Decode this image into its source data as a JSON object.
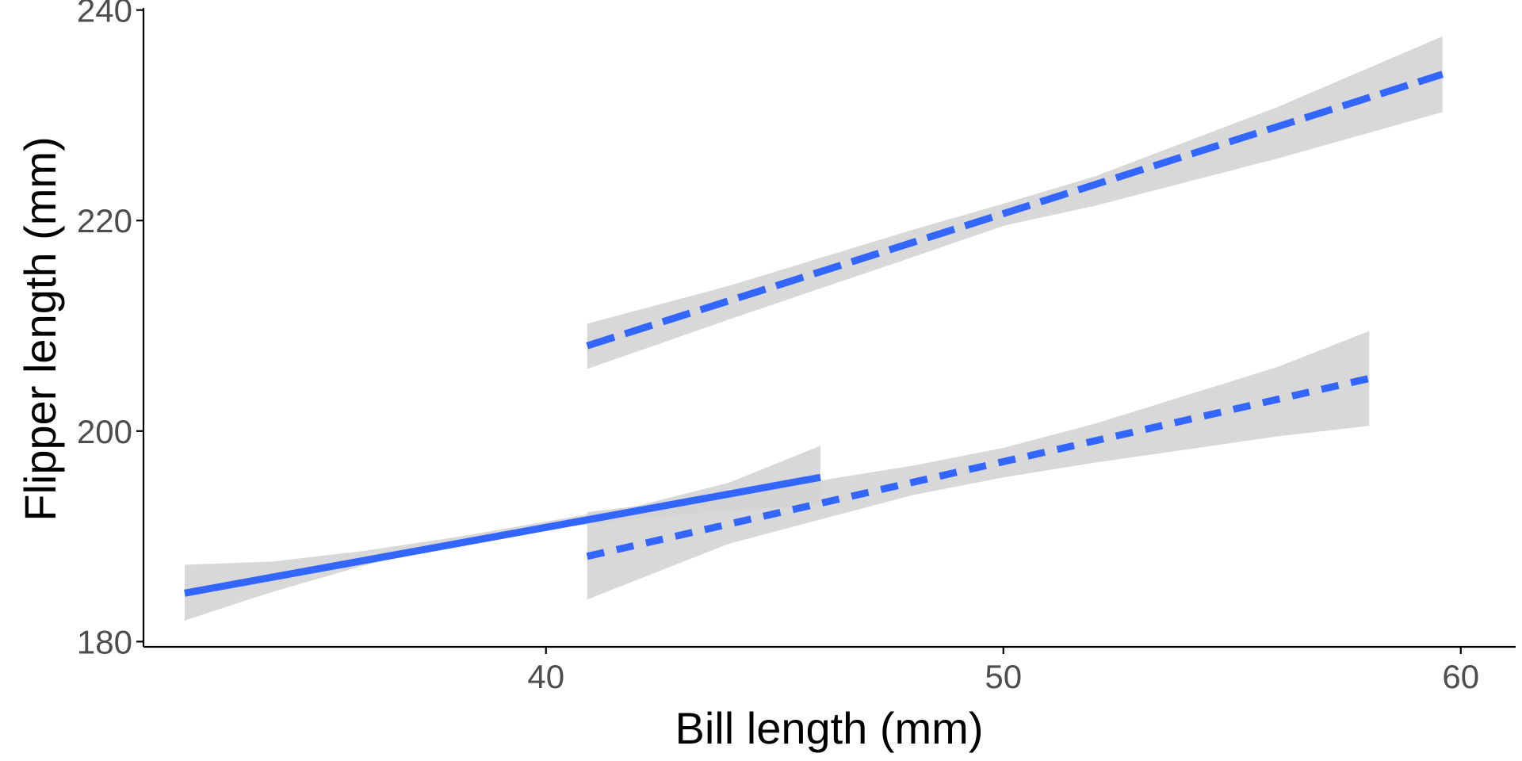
{
  "chart_data": {
    "type": "line",
    "title": "",
    "xlabel": "Bill length (mm)",
    "ylabel": "Flipper length (mm)",
    "xlim": [
      31.2,
      61.2
    ],
    "ylim": [
      179.5,
      240.2
    ],
    "x_ticks": [
      40,
      50,
      60
    ],
    "y_ticks": [
      180,
      200,
      220,
      240
    ],
    "grid": false,
    "legend": "none",
    "color": "#3366ff",
    "band_color": "#d3d3d3",
    "series": [
      {
        "linetype": "solid",
        "x": [
          32.1,
          46.0
        ],
        "y": [
          184.6,
          195.6
        ],
        "band_x": [
          32.1,
          34,
          36,
          38,
          40,
          42,
          44,
          46.0
        ],
        "band_lower": [
          182.0,
          184.7,
          187.2,
          189.4,
          190.7,
          191.7,
          192.5,
          192.9
        ],
        "band_upper": [
          187.3,
          187.6,
          188.6,
          189.9,
          191.4,
          192.9,
          195.1,
          198.6
        ]
      },
      {
        "linetype": "dashed",
        "x": [
          40.9,
          59.6
        ],
        "y": [
          208.1,
          233.9
        ],
        "band_x": [
          40.9,
          44,
          48,
          50,
          52,
          56,
          59.6
        ],
        "band_lower": [
          205.9,
          210.6,
          216.5,
          219.5,
          221.4,
          225.9,
          230.3
        ],
        "band_upper": [
          210.2,
          213.8,
          219.1,
          221.6,
          224.2,
          230.8,
          237.5
        ]
      },
      {
        "linetype": "dotted-dash",
        "x": [
          40.9,
          58.0
        ],
        "y": [
          188.1,
          205.0
        ],
        "band_x": [
          40.9,
          44,
          48,
          50,
          52,
          56,
          58.0
        ],
        "band_lower": [
          184.0,
          189.3,
          193.9,
          195.6,
          197.0,
          199.5,
          200.5
        ],
        "band_upper": [
          192.3,
          193.9,
          196.7,
          198.4,
          200.7,
          206.1,
          209.5
        ]
      }
    ]
  }
}
